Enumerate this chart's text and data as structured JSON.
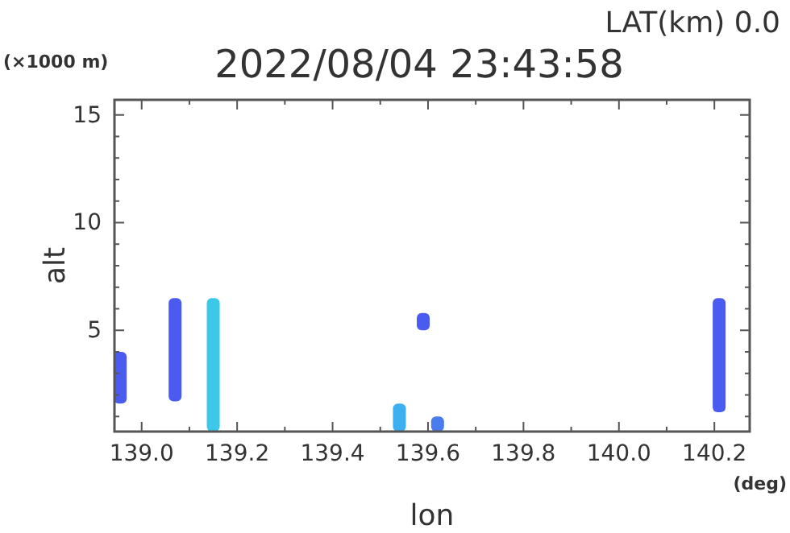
{
  "chart_data": {
    "type": "bar",
    "title": "2022/08/04 23:43:58",
    "subtitle": "LAT(km) 0.0",
    "xlabel": "lon",
    "ylabel": "alt",
    "annotations": [
      "(×1000 m)",
      "(deg)"
    ],
    "x": [
      138.955,
      139.07,
      139.15,
      139.54,
      139.59,
      139.62,
      140.21
    ],
    "base": [
      1.6,
      1.7,
      0.3,
      0.3,
      5.0,
      0.3,
      1.2
    ],
    "values": [
      2.4,
      4.8,
      6.2,
      1.3,
      0.8,
      0.7,
      5.3
    ],
    "colors": [
      "#4a5cf0",
      "#4a5cf0",
      "#3cc8e8",
      "#3cb0f0",
      "#4a5cf0",
      "#4a7cf0",
      "#4a5cf0"
    ],
    "xlim": [
      138.943,
      140.274
    ],
    "ylim": [
      0.3,
      15.7
    ],
    "xticks": [
      {
        "value": 139.0,
        "label": "139.0"
      },
      {
        "value": 139.1,
        "label": null
      },
      139.2,
      {
        "value": 139.3,
        "label": null
      },
      139.4,
      {
        "value": 139.5,
        "label": null
      },
      139.6,
      {
        "value": 139.7,
        "label": null
      },
      139.8,
      {
        "value": 139.9,
        "label": null
      },
      {
        "value": 140.0,
        "label": "140.0"
      },
      {
        "value": 140.1,
        "label": null
      },
      140.2
    ],
    "yticks": [
      {
        "value": 1,
        "label": null
      },
      {
        "value": 2,
        "label": null
      },
      {
        "value": 3,
        "label": null
      },
      {
        "value": 4,
        "label": null
      },
      5,
      {
        "value": 6,
        "label": null
      },
      {
        "value": 7,
        "label": null
      },
      {
        "value": 8,
        "label": null
      },
      {
        "value": 9,
        "label": null
      },
      10,
      {
        "value": 11,
        "label": null
      },
      {
        "value": 12,
        "label": null
      },
      {
        "value": 13,
        "label": null
      },
      {
        "value": 14,
        "label": null
      },
      15
    ],
    "grid": false
  }
}
